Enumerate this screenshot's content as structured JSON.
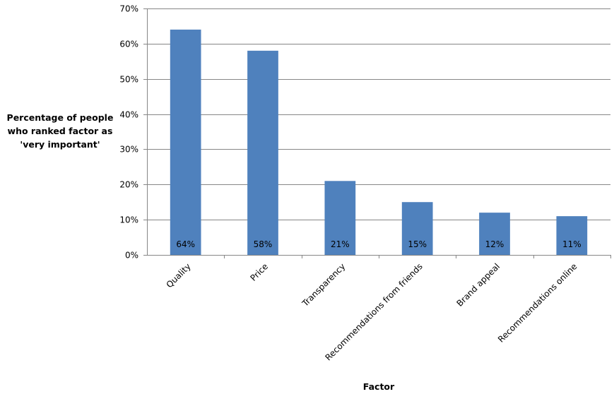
{
  "chart_data": {
    "type": "bar",
    "title": "",
    "ylabel_lines": [
      "Percentage of people",
      "who ranked factor as",
      "'very important'"
    ],
    "xlabel": "Factor",
    "categories": [
      "Quality",
      "Price",
      "Transparency",
      "Recommendations from friends",
      "Brand appeal",
      "Recommendations online"
    ],
    "values": [
      64,
      58,
      21,
      15,
      12,
      11
    ],
    "data_labels": [
      "64%",
      "58%",
      "21%",
      "15%",
      "12%",
      "11%"
    ],
    "ylim": [
      0,
      70
    ],
    "yticks": [
      0,
      10,
      20,
      30,
      40,
      50,
      60,
      70
    ],
    "ytick_labels": [
      "0%",
      "10%",
      "20%",
      "30%",
      "40%",
      "50%",
      "60%",
      "70%"
    ],
    "grid": true,
    "legend": "none",
    "bar_color": "#4F81BD",
    "grid_color": "#868686",
    "axis_color": "#868686"
  }
}
